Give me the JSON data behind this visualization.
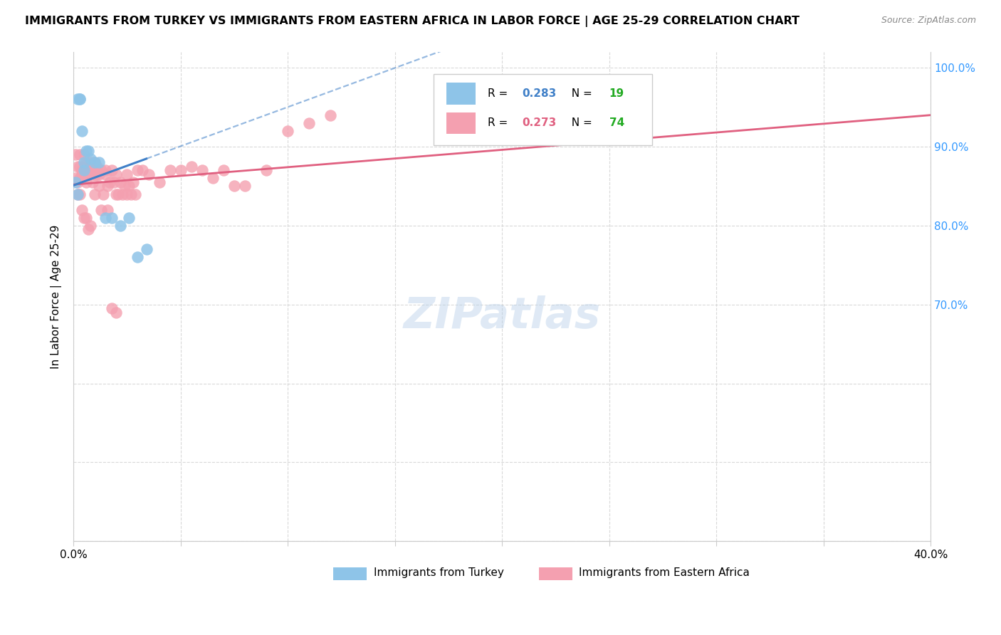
{
  "title": "IMMIGRANTS FROM TURKEY VS IMMIGRANTS FROM EASTERN AFRICA IN LABOR FORCE | AGE 25-29 CORRELATION CHART",
  "source": "Source: ZipAtlas.com",
  "ylabel": "In Labor Force | Age 25-29",
  "xlim": [
    0.0,
    0.4
  ],
  "ylim": [
    0.4,
    1.02
  ],
  "turkey_color": "#8ec4e8",
  "eastern_africa_color": "#f4a0b0",
  "turkey_line_color": "#4080c8",
  "eastern_africa_line_color": "#e06080",
  "grid_color": "#d0d0d0",
  "background_color": "#ffffff",
  "turkey_R": "0.283",
  "turkey_N": "19",
  "africa_R": "0.273",
  "africa_N": "74",
  "R_color_turkey": "#4080c8",
  "N_color": "#22aa22",
  "R_color_africa": "#e06080",
  "turkey_x": [
    0.001,
    0.002,
    0.002,
    0.003,
    0.003,
    0.004,
    0.005,
    0.005,
    0.006,
    0.007,
    0.008,
    0.01,
    0.012,
    0.015,
    0.018,
    0.022,
    0.026,
    0.03,
    0.034
  ],
  "turkey_y": [
    0.855,
    0.96,
    0.84,
    0.96,
    0.96,
    0.92,
    0.87,
    0.88,
    0.895,
    0.895,
    0.885,
    0.88,
    0.88,
    0.81,
    0.81,
    0.8,
    0.81,
    0.76,
    0.77
  ],
  "africa_x": [
    0.001,
    0.001,
    0.002,
    0.002,
    0.003,
    0.003,
    0.003,
    0.004,
    0.004,
    0.005,
    0.005,
    0.005,
    0.006,
    0.006,
    0.007,
    0.007,
    0.008,
    0.008,
    0.009,
    0.009,
    0.01,
    0.01,
    0.011,
    0.011,
    0.012,
    0.012,
    0.013,
    0.014,
    0.015,
    0.015,
    0.016,
    0.017,
    0.018,
    0.019,
    0.02,
    0.021,
    0.022,
    0.023,
    0.024,
    0.025,
    0.026,
    0.027,
    0.028,
    0.029,
    0.03,
    0.032,
    0.035,
    0.04,
    0.045,
    0.05,
    0.055,
    0.06,
    0.065,
    0.07,
    0.075,
    0.08,
    0.09,
    0.1,
    0.11,
    0.12,
    0.002,
    0.003,
    0.004,
    0.005,
    0.006,
    0.007,
    0.008,
    0.01,
    0.013,
    0.016,
    0.02,
    0.025,
    0.018,
    0.02
  ],
  "africa_y": [
    0.86,
    0.89,
    0.855,
    0.875,
    0.86,
    0.875,
    0.89,
    0.87,
    0.865,
    0.89,
    0.875,
    0.86,
    0.855,
    0.88,
    0.865,
    0.875,
    0.88,
    0.87,
    0.855,
    0.875,
    0.88,
    0.865,
    0.865,
    0.875,
    0.85,
    0.865,
    0.87,
    0.84,
    0.87,
    0.865,
    0.85,
    0.855,
    0.87,
    0.855,
    0.865,
    0.84,
    0.855,
    0.84,
    0.85,
    0.865,
    0.85,
    0.84,
    0.855,
    0.84,
    0.87,
    0.87,
    0.865,
    0.855,
    0.87,
    0.87,
    0.875,
    0.87,
    0.86,
    0.87,
    0.85,
    0.85,
    0.87,
    0.92,
    0.93,
    0.94,
    0.84,
    0.84,
    0.82,
    0.81,
    0.81,
    0.795,
    0.8,
    0.84,
    0.82,
    0.82,
    0.84,
    0.84,
    0.695,
    0.69
  ]
}
